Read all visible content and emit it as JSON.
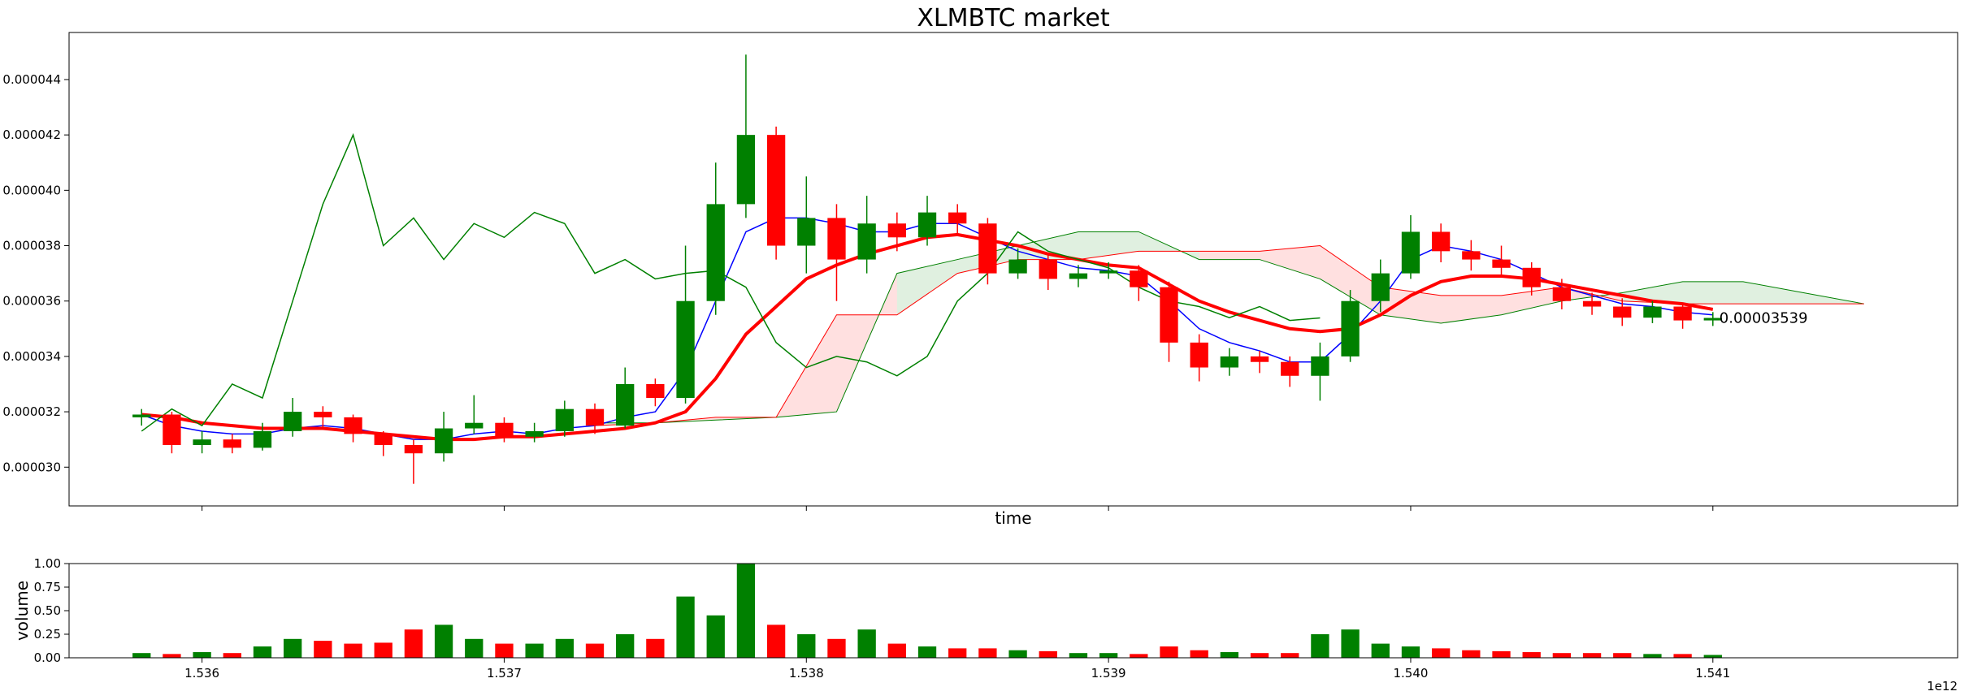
{
  "chart_data": {
    "type": "candlestick",
    "title": "XLMBTC market",
    "xlabel": "time",
    "volume_ylabel": "volume",
    "x_offset_label": "1e12",
    "annotation": "0.00003539",
    "x": [
      1.5358,
      1.5359,
      1.536,
      1.5361,
      1.5362,
      1.5363,
      1.5364,
      1.5365,
      1.5366,
      1.5367,
      1.5368,
      1.5369,
      1.537,
      1.5371,
      1.5372,
      1.5373,
      1.5374,
      1.5375,
      1.5376,
      1.5377,
      1.5378,
      1.5379,
      1.538,
      1.5381,
      1.5382,
      1.5383,
      1.5384,
      1.5385,
      1.5386,
      1.5387,
      1.5388,
      1.5389,
      1.539,
      1.5391,
      1.5392,
      1.5393,
      1.5394,
      1.5395,
      1.5396,
      1.5397,
      1.5398,
      1.5399,
      1.54,
      1.5401,
      1.5402,
      1.5403,
      1.5404,
      1.5405,
      1.5406,
      1.5407,
      1.5408,
      1.5409,
      1.541
    ],
    "open": [
      3.18e-05,
      3.19e-05,
      3.08e-05,
      3.1e-05,
      3.07e-05,
      3.13e-05,
      3.2e-05,
      3.18e-05,
      3.12e-05,
      3.08e-05,
      3.05e-05,
      3.14e-05,
      3.16e-05,
      3.11e-05,
      3.13e-05,
      3.21e-05,
      3.15e-05,
      3.3e-05,
      3.25e-05,
      3.6e-05,
      3.95e-05,
      4.2e-05,
      3.8e-05,
      3.9e-05,
      3.75e-05,
      3.88e-05,
      3.83e-05,
      3.92e-05,
      3.88e-05,
      3.7e-05,
      3.75e-05,
      3.68e-05,
      3.7e-05,
      3.71e-05,
      3.65e-05,
      3.45e-05,
      3.36e-05,
      3.4e-05,
      3.38e-05,
      3.33e-05,
      3.4e-05,
      3.6e-05,
      3.7e-05,
      3.85e-05,
      3.78e-05,
      3.75e-05,
      3.72e-05,
      3.65e-05,
      3.6e-05,
      3.58e-05,
      3.54e-05,
      3.58e-05,
      3.53e-05
    ],
    "high": [
      3.21e-05,
      3.2e-05,
      3.13e-05,
      3.12e-05,
      3.16e-05,
      3.25e-05,
      3.22e-05,
      3.19e-05,
      3.13e-05,
      3.1e-05,
      3.2e-05,
      3.26e-05,
      3.18e-05,
      3.16e-05,
      3.24e-05,
      3.23e-05,
      3.36e-05,
      3.32e-05,
      3.8e-05,
      4.1e-05,
      4.49e-05,
      4.23e-05,
      4.05e-05,
      3.95e-05,
      3.98e-05,
      3.92e-05,
      3.98e-05,
      3.95e-05,
      3.9e-05,
      3.79e-05,
      3.77e-05,
      3.73e-05,
      3.74e-05,
      3.73e-05,
      3.67e-05,
      3.48e-05,
      3.43e-05,
      3.42e-05,
      3.4e-05,
      3.45e-05,
      3.64e-05,
      3.75e-05,
      3.91e-05,
      3.88e-05,
      3.82e-05,
      3.8e-05,
      3.74e-05,
      3.68e-05,
      3.63e-05,
      3.61e-05,
      3.6e-05,
      3.59e-05,
      3.56e-05
    ],
    "low": [
      3.15e-05,
      3.05e-05,
      3.05e-05,
      3.05e-05,
      3.06e-05,
      3.11e-05,
      3.14e-05,
      3.09e-05,
      3.04e-05,
      2.94e-05,
      3.02e-05,
      3.12e-05,
      3.09e-05,
      3.09e-05,
      3.11e-05,
      3.12e-05,
      3.14e-05,
      3.22e-05,
      3.23e-05,
      3.55e-05,
      3.9e-05,
      3.75e-05,
      3.7e-05,
      3.6e-05,
      3.7e-05,
      3.78e-05,
      3.8e-05,
      3.84e-05,
      3.66e-05,
      3.68e-05,
      3.64e-05,
      3.65e-05,
      3.68e-05,
      3.6e-05,
      3.38e-05,
      3.31e-05,
      3.33e-05,
      3.34e-05,
      3.29e-05,
      3.24e-05,
      3.38e-05,
      3.56e-05,
      3.68e-05,
      3.74e-05,
      3.71e-05,
      3.69e-05,
      3.62e-05,
      3.57e-05,
      3.55e-05,
      3.51e-05,
      3.52e-05,
      3.5e-05,
      3.51e-05
    ],
    "close": [
      3.19e-05,
      3.08e-05,
      3.1e-05,
      3.07e-05,
      3.13e-05,
      3.2e-05,
      3.18e-05,
      3.12e-05,
      3.08e-05,
      3.05e-05,
      3.14e-05,
      3.16e-05,
      3.11e-05,
      3.13e-05,
      3.21e-05,
      3.15e-05,
      3.3e-05,
      3.25e-05,
      3.6e-05,
      3.95e-05,
      4.2e-05,
      3.8e-05,
      3.9e-05,
      3.75e-05,
      3.88e-05,
      3.83e-05,
      3.92e-05,
      3.88e-05,
      3.7e-05,
      3.75e-05,
      3.68e-05,
      3.7e-05,
      3.71e-05,
      3.65e-05,
      3.45e-05,
      3.36e-05,
      3.4e-05,
      3.38e-05,
      3.33e-05,
      3.4e-05,
      3.6e-05,
      3.7e-05,
      3.85e-05,
      3.78e-05,
      3.75e-05,
      3.72e-05,
      3.65e-05,
      3.6e-05,
      3.58e-05,
      3.54e-05,
      3.58e-05,
      3.53e-05,
      3.539e-05
    ],
    "up_color": "green",
    "down_color": "red",
    "volume": [
      0.05,
      0.04,
      0.06,
      0.05,
      0.12,
      0.2,
      0.18,
      0.15,
      0.16,
      0.3,
      0.35,
      0.2,
      0.15,
      0.15,
      0.2,
      0.15,
      0.25,
      0.2,
      0.65,
      0.45,
      1.0,
      0.35,
      0.25,
      0.2,
      0.3,
      0.15,
      0.12,
      0.1,
      0.1,
      0.08,
      0.07,
      0.05,
      0.05,
      0.04,
      0.12,
      0.08,
      0.06,
      0.05,
      0.05,
      0.25,
      0.3,
      0.15,
      0.12,
      0.1,
      0.08,
      0.07,
      0.06,
      0.05,
      0.05,
      0.05,
      0.04,
      0.04,
      0.03
    ],
    "overlays": [
      {
        "color": "blue",
        "width": 1.5,
        "values": [
          3.19e-05,
          3.15e-05,
          3.13e-05,
          3.12e-05,
          3.12e-05,
          3.14e-05,
          3.15e-05,
          3.14e-05,
          3.12e-05,
          3.1e-05,
          3.1e-05,
          3.12e-05,
          3.13e-05,
          3.12e-05,
          3.14e-05,
          3.15e-05,
          3.18e-05,
          3.2e-05,
          3.35e-05,
          3.6e-05,
          3.85e-05,
          3.9e-05,
          3.9e-05,
          3.88e-05,
          3.85e-05,
          3.85e-05,
          3.88e-05,
          3.88e-05,
          3.83e-05,
          3.78e-05,
          3.75e-05,
          3.72e-05,
          3.71e-05,
          3.69e-05,
          3.6e-05,
          3.5e-05,
          3.45e-05,
          3.42e-05,
          3.38e-05,
          3.38e-05,
          3.48e-05,
          3.6e-05,
          3.75e-05,
          3.8e-05,
          3.78e-05,
          3.75e-05,
          3.7e-05,
          3.65e-05,
          3.62e-05,
          3.59e-05,
          3.58e-05,
          3.56e-05,
          3.55e-05
        ]
      },
      {
        "color": "red",
        "width": 4,
        "values": [
          3.19e-05,
          3.18e-05,
          3.16e-05,
          3.15e-05,
          3.14e-05,
          3.14e-05,
          3.14e-05,
          3.13e-05,
          3.12e-05,
          3.11e-05,
          3.1e-05,
          3.1e-05,
          3.11e-05,
          3.11e-05,
          3.12e-05,
          3.13e-05,
          3.14e-05,
          3.16e-05,
          3.2e-05,
          3.32e-05,
          3.48e-05,
          3.58e-05,
          3.68e-05,
          3.73e-05,
          3.77e-05,
          3.8e-05,
          3.83e-05,
          3.84e-05,
          3.82e-05,
          3.8e-05,
          3.77e-05,
          3.75e-05,
          3.73e-05,
          3.72e-05,
          3.66e-05,
          3.6e-05,
          3.56e-05,
          3.53e-05,
          3.5e-05,
          3.49e-05,
          3.5e-05,
          3.55e-05,
          3.62e-05,
          3.67e-05,
          3.69e-05,
          3.69e-05,
          3.68e-05,
          3.66e-05,
          3.64e-05,
          3.62e-05,
          3.6e-05,
          3.59e-05,
          3.57e-05
        ]
      },
      {
        "color": "green",
        "width": 1.5,
        "values": [
          3.13e-05,
          3.21e-05,
          3.15e-05,
          3.3e-05,
          3.25e-05,
          3.6e-05,
          3.95e-05,
          4.2e-05,
          3.8e-05,
          3.9e-05,
          3.75e-05,
          3.88e-05,
          3.83e-05,
          3.92e-05,
          3.88e-05,
          3.7e-05,
          3.75e-05,
          3.68e-05,
          3.7e-05,
          3.71e-05,
          3.65e-05,
          3.45e-05,
          3.36e-05,
          3.4e-05,
          3.38e-05,
          3.33e-05,
          3.4e-05,
          3.6e-05,
          3.7e-05,
          3.85e-05,
          3.78e-05,
          3.75e-05,
          3.72e-05,
          3.65e-05,
          3.6e-05,
          3.58e-05,
          3.54e-05,
          3.58e-05,
          3.53e-05,
          3.539e-05,
          null,
          null,
          null,
          null,
          null,
          null,
          null,
          null,
          null,
          null,
          null,
          null,
          null
        ]
      }
    ],
    "cloud": {
      "x": [
        1.5373,
        1.5375,
        1.5377,
        1.5379,
        1.5381,
        1.5383,
        1.5385,
        1.5387,
        1.5389,
        1.5391,
        1.5393,
        1.5395,
        1.5397,
        1.5399,
        1.5401,
        1.5403,
        1.5405,
        1.5407,
        1.5409,
        1.5411,
        1.5413,
        1.5415
      ],
      "span_a": [
        3.16e-05,
        3.16e-05,
        3.17e-05,
        3.18e-05,
        3.2e-05,
        3.7e-05,
        3.75e-05,
        3.8e-05,
        3.85e-05,
        3.85e-05,
        3.75e-05,
        3.75e-05,
        3.68e-05,
        3.55e-05,
        3.52e-05,
        3.55e-05,
        3.6e-05,
        3.63e-05,
        3.67e-05,
        3.67e-05,
        3.63e-05,
        3.59e-05
      ],
      "span_b": [
        3.15e-05,
        3.16e-05,
        3.18e-05,
        3.18e-05,
        3.55e-05,
        3.55e-05,
        3.7e-05,
        3.75e-05,
        3.75e-05,
        3.78e-05,
        3.78e-05,
        3.78e-05,
        3.8e-05,
        3.65e-05,
        3.62e-05,
        3.62e-05,
        3.65e-05,
        3.6e-05,
        3.59e-05,
        3.59e-05,
        3.59e-05,
        3.59e-05
      ],
      "up_color": "green",
      "down_color": "red"
    },
    "xlim": [
      1.53556,
      1.54181
    ],
    "xticks": [
      1.536,
      1.537,
      1.538,
      1.539,
      1.54,
      1.541
    ],
    "xtick_labels": [
      "1.536",
      "1.537",
      "1.538",
      "1.539",
      "1.540",
      "1.541"
    ],
    "ylim": [
      2.86e-05,
      4.57e-05
    ],
    "yticks": [
      {
        "value": 3e-05,
        "label": "0.000030"
      },
      {
        "value": 3.2e-05,
        "label": "0.000032"
      },
      {
        "value": 3.4e-05,
        "label": "0.000034"
      },
      {
        "value": 3.6e-05,
        "label": "0.000036"
      },
      {
        "value": 3.8e-05,
        "label": "0.000038"
      },
      {
        "value": 4e-05,
        "label": "0.000040"
      },
      {
        "value": 4.2e-05,
        "label": "0.000042"
      },
      {
        "value": 4.4e-05,
        "label": "0.000044"
      }
    ],
    "volume_ylim": [
      0,
      1
    ],
    "volume_yticks": [
      {
        "value": 0,
        "label": "0.00"
      },
      {
        "value": 0.25,
        "label": "0.25"
      },
      {
        "value": 0.5,
        "label": "0.50"
      },
      {
        "value": 0.75,
        "label": "0.75"
      },
      {
        "value": 1,
        "label": "1.00"
      }
    ]
  }
}
